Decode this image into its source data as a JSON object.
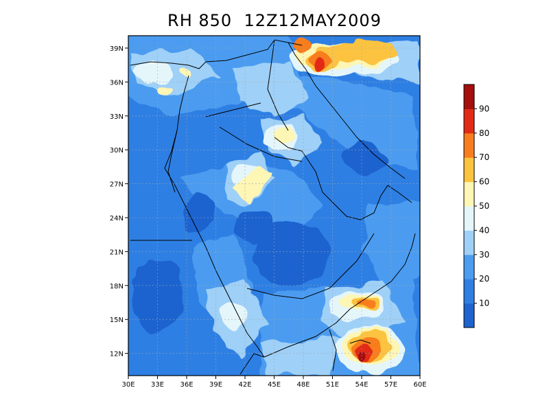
{
  "title": "RH 850  12Z12MAY2009",
  "map": {
    "lat_labels": [
      "39N",
      "36N",
      "33N",
      "30N",
      "27N",
      "24N",
      "21N",
      "18N",
      "15N",
      "12N"
    ],
    "lat_values": [
      39,
      36,
      33,
      30,
      27,
      24,
      21,
      18,
      15,
      12
    ],
    "lon_labels": [
      "30E",
      "33E",
      "36E",
      "39E",
      "42E",
      "45E",
      "48E",
      "51E",
      "54E",
      "57E",
      "60E"
    ],
    "lon_values": [
      30,
      33,
      36,
      39,
      42,
      45,
      48,
      51,
      54,
      57,
      60
    ],
    "lon_range": [
      30,
      60
    ],
    "lat_range": [
      10,
      40
    ],
    "grid": true
  },
  "colorbar": {
    "labels": [
      "10",
      "20",
      "30",
      "40",
      "50",
      "60",
      "70",
      "80",
      "90"
    ],
    "colors": [
      "#1f63cf",
      "#2f7fe3",
      "#4c9cf0",
      "#9fd0f7",
      "#e5f6fb",
      "#fef6b4",
      "#fcc340",
      "#f87d1f",
      "#e22b16",
      "#a50f0c"
    ]
  }
}
